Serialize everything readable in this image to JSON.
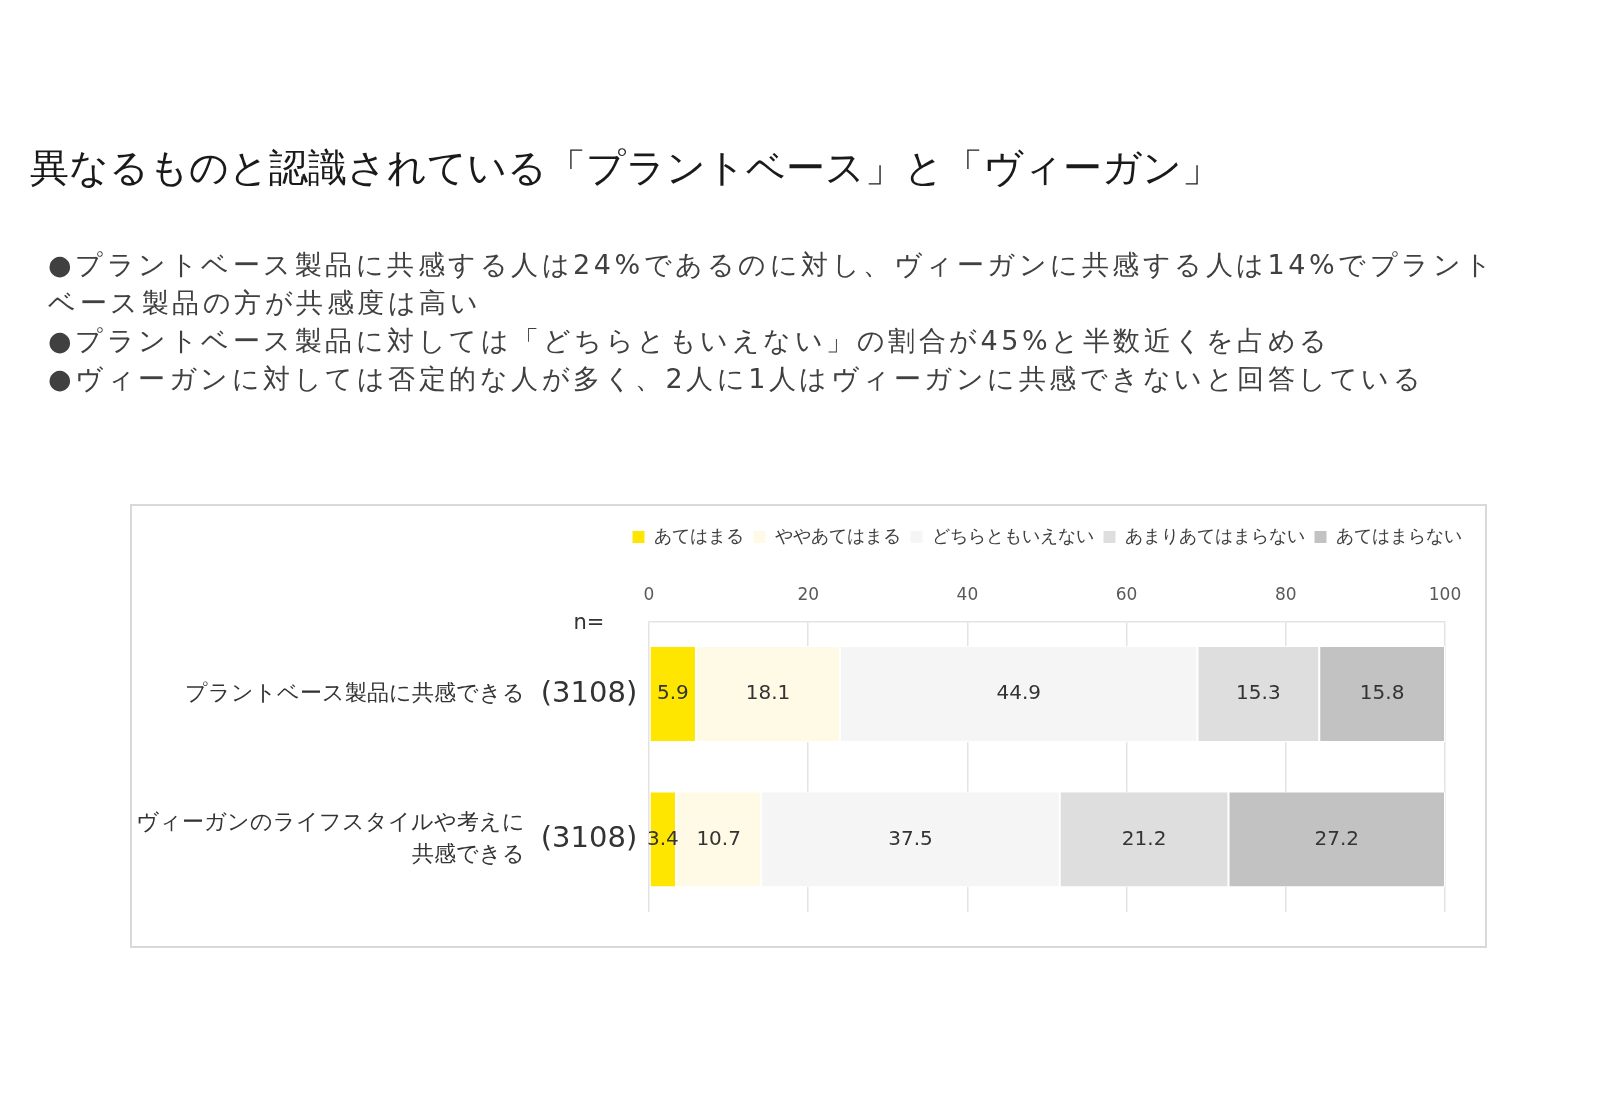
{
  "chart_data": {
    "type": "bar",
    "orientation": "horizontal",
    "stacked": true,
    "title": "異なるものと認識されている「プラントベース」と「ヴィーガン」",
    "subtitle": "●プラントベース製品に共感する人は24%であるのに対し、ヴィーガンに共感する人は14%でプラントベース製品の方が共感度は高い\n●プラントベース製品に対しては「どちらともいえない」の割合が45%と半数近くを占める\n●ヴィーガンに対しては否定的な人が多く、2人に1人はヴィーガンに共感できないと回答している",
    "categories": [
      "プラントベース製品に共感できる",
      "ヴィーガンのライフスタイルや考えに共感できる"
    ],
    "series": [
      {
        "name": "あてはまる",
        "color": "#ffe600",
        "values": [
          5.9,
          3.4
        ]
      },
      {
        "name": "ややあてはまる",
        "color": "#fffae6",
        "values": [
          18.1,
          10.7
        ]
      },
      {
        "name": "どちらともいえない",
        "color": "#f5f5f5",
        "values": [
          44.9,
          37.5
        ]
      },
      {
        "name": "あまりあてはまらない",
        "color": "#dedede",
        "values": [
          15.3,
          21.2
        ]
      },
      {
        "name": "あてはまらない",
        "color": "#c2c2c2",
        "values": [
          15.8,
          27.2
        ]
      }
    ],
    "xlim": [
      0,
      100
    ],
    "xticks": [
      0,
      20,
      40,
      60,
      80,
      100
    ],
    "grid": "x",
    "legend": "top",
    "data_labels": true,
    "annotations": [
      "n=",
      "(3108)",
      "(3108)"
    ]
  }
}
